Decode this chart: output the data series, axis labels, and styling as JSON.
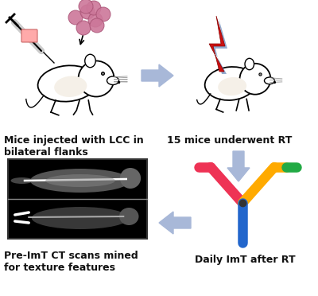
{
  "background_color": "#ffffff",
  "arrow_color": "#a8b8d8",
  "label_top_left": "Mice injected with LCC in\nbilateral flanks",
  "label_top_right": "15 mice underwent RT",
  "label_bot_right": "Daily ImT after RT",
  "label_bot_left": "Pre-ImT CT scans mined\nfor texture features",
  "font_size": 9,
  "cell_color": "#cc7799",
  "cell_edge_color": "#aa5577",
  "bolt_color": "#cc1111",
  "bolt_bg_color": "#6688bb",
  "ab_left_color": "#ee3355",
  "ab_right_color": "#ffaa00",
  "ab_green_color": "#22aa44",
  "ab_stem_color": "#2266cc"
}
